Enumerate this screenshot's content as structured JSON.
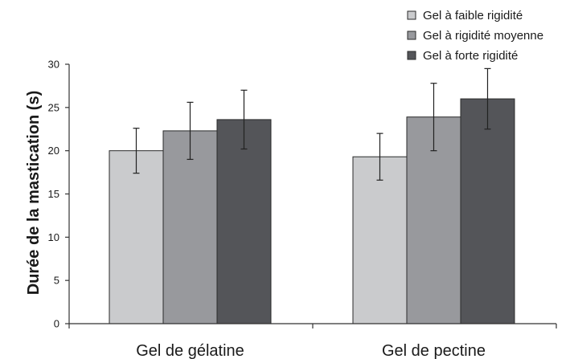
{
  "chart_data": {
    "type": "bar",
    "title": "",
    "xlabel": "",
    "ylabel": "Durée de la mastication (s)",
    "ylim": [
      0,
      30
    ],
    "yticks": [
      0,
      5,
      10,
      15,
      20,
      25,
      30
    ],
    "grid": false,
    "legend_position": "top-right",
    "categories": [
      "Gel de gélatine",
      "Gel de pectine"
    ],
    "series": [
      {
        "name": "Gel à faible rigidité",
        "color": "#cacbcd",
        "values": [
          20.0,
          19.3
        ],
        "errors": [
          2.6,
          2.7
        ]
      },
      {
        "name": "Gel à rigidité moyenne",
        "color": "#98999d",
        "values": [
          22.3,
          23.9
        ],
        "errors": [
          3.3,
          3.9
        ]
      },
      {
        "name": "Gel à forte rigidité",
        "color": "#545559",
        "values": [
          23.6,
          26.0
        ],
        "errors": [
          3.4,
          3.5
        ]
      }
    ]
  }
}
